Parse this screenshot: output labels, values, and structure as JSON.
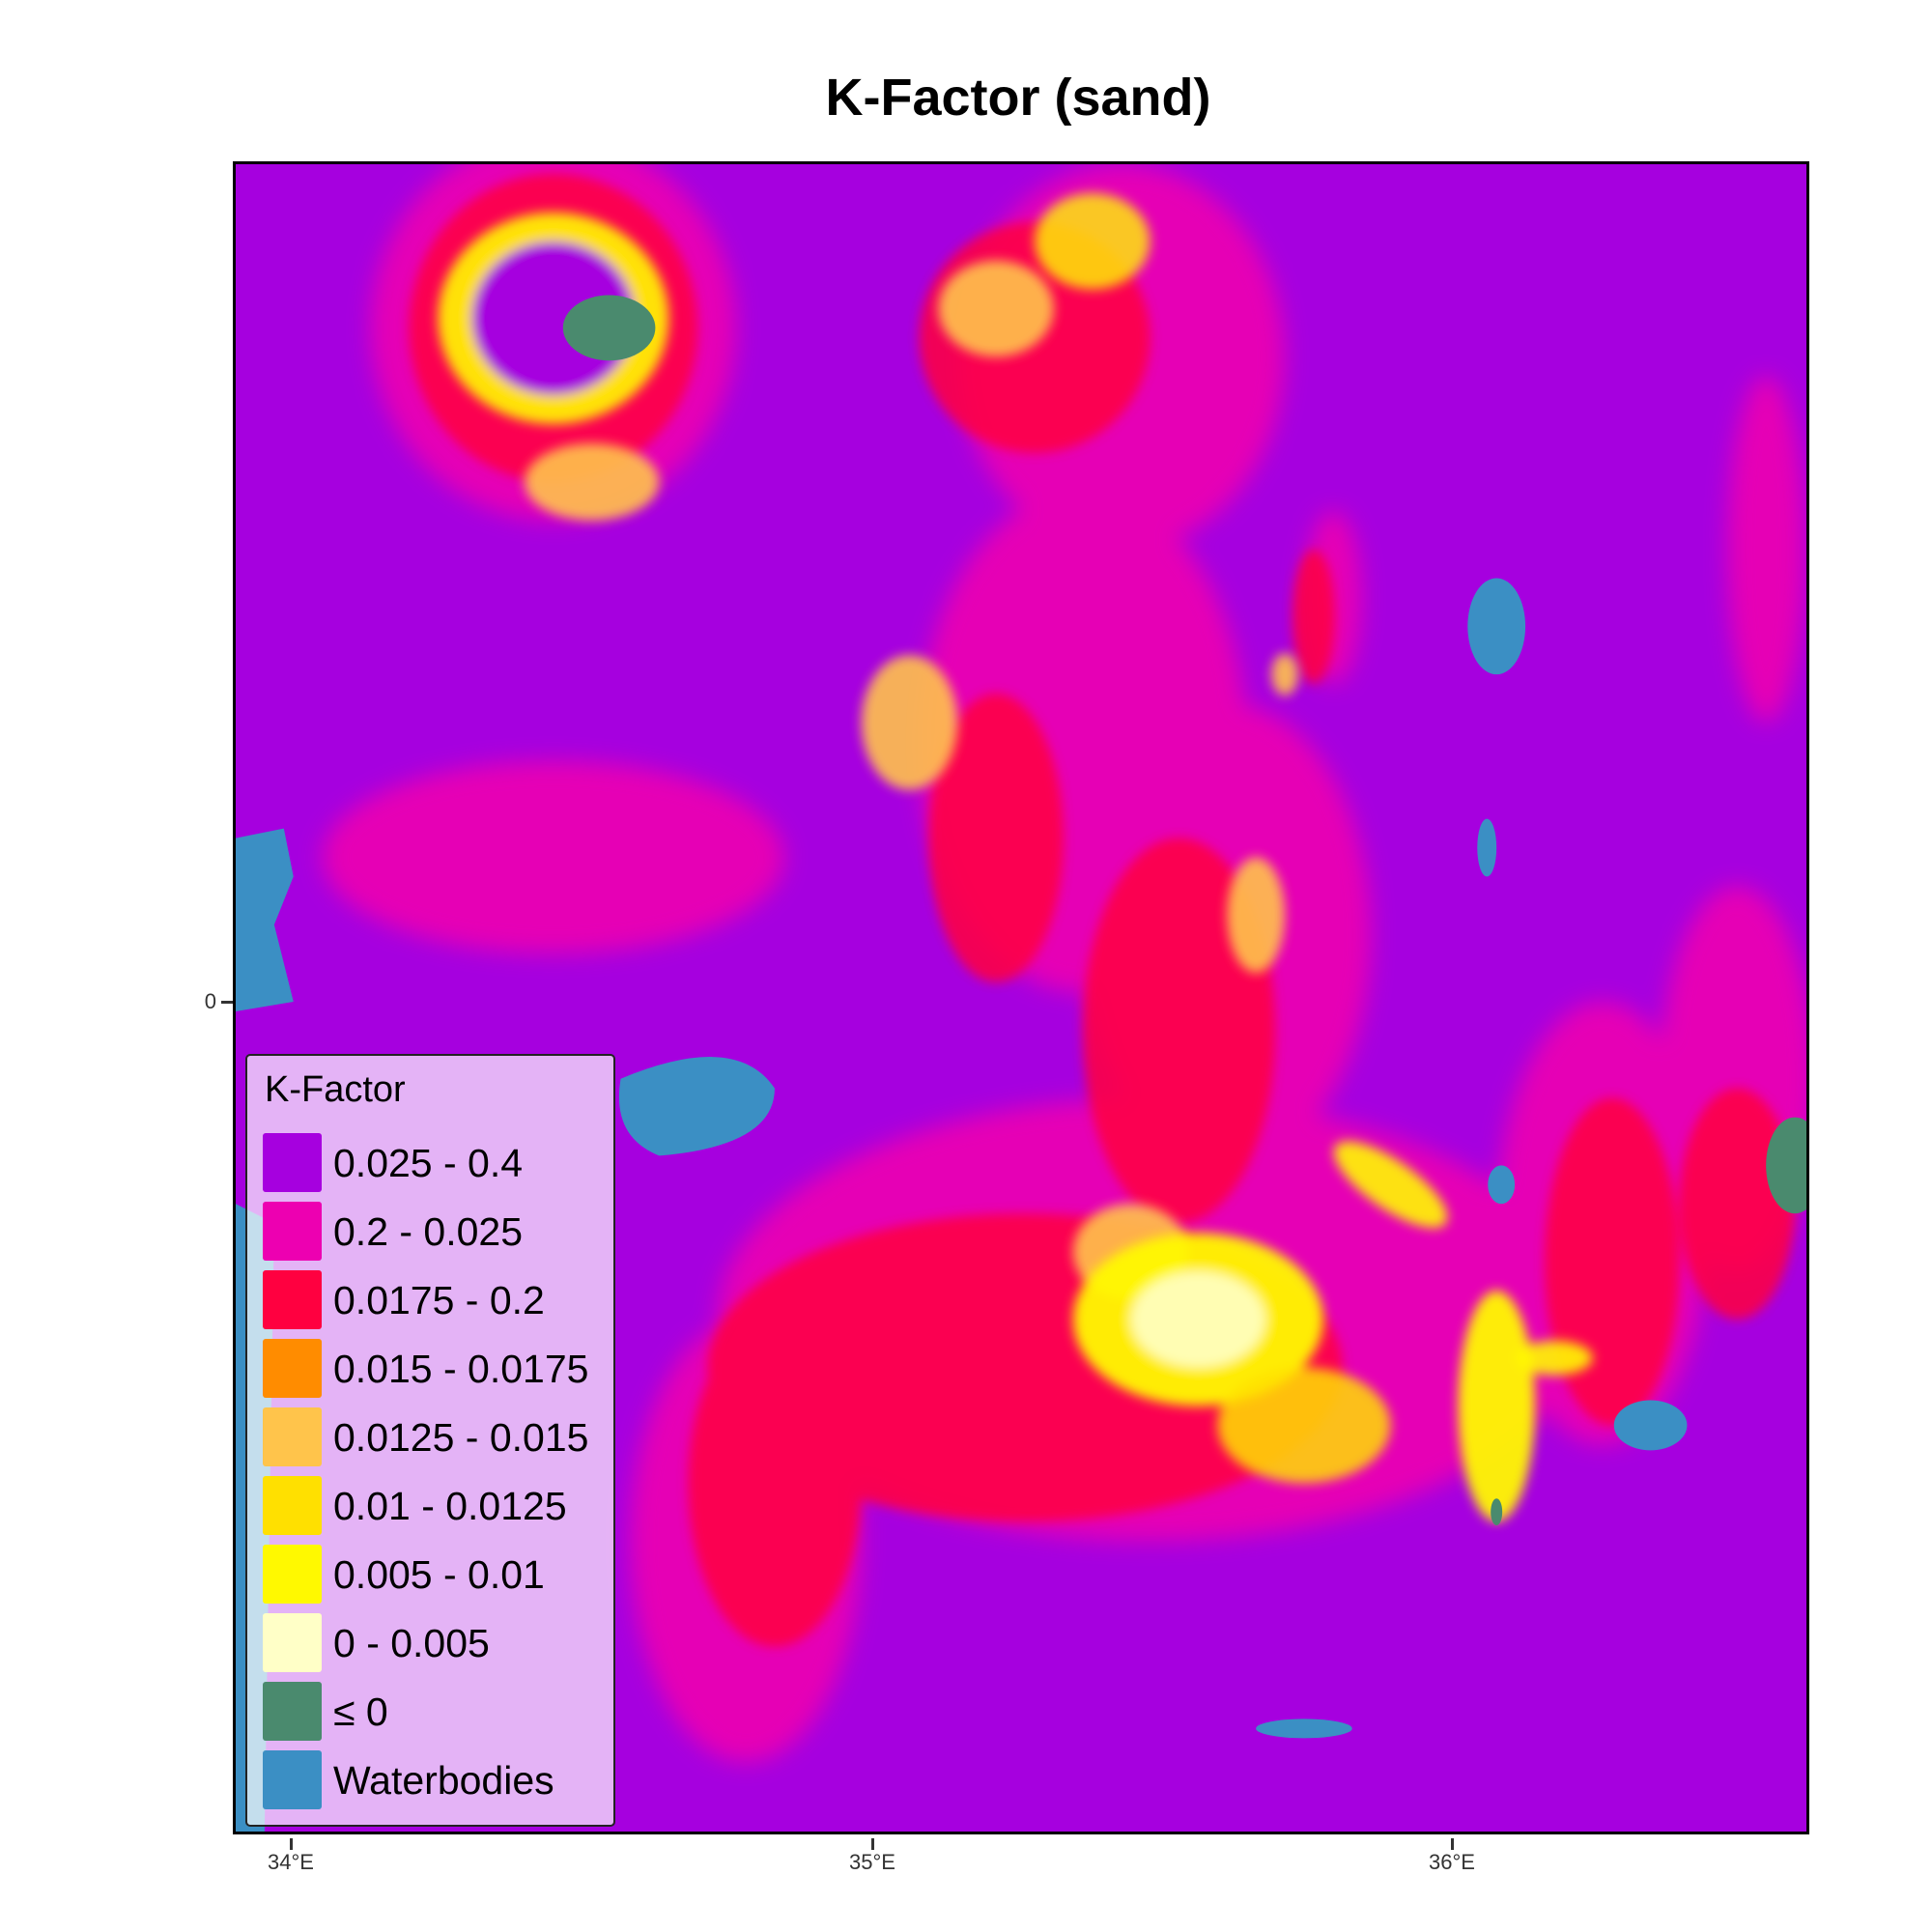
{
  "title": "K-Factor (sand)",
  "x_axis": {
    "ticks": [
      "34°E",
      "35°E",
      "36°E"
    ]
  },
  "y_axis": {
    "ticks": [
      "0"
    ]
  },
  "legend": {
    "title": "K-Factor",
    "items": [
      {
        "label": "0.025 - 0.4",
        "color": "#a600df"
      },
      {
        "label": "0.2 - 0.025",
        "color": "#ed00b1"
      },
      {
        "label": "0.0175 - 0.2",
        "color": "#ff0040"
      },
      {
        "label": "0.015 - 0.0175",
        "color": "#ff8c00"
      },
      {
        "label": "0.0125 - 0.015",
        "color": "#ffc44b"
      },
      {
        "label": "0.01 - 0.0125",
        "color": "#ffe000"
      },
      {
        "label": "0.005 - 0.01",
        "color": "#fff900"
      },
      {
        "label": "0 - 0.005",
        "color": "#ffffc7"
      },
      {
        "label": "≤ 0",
        "color": "#4a8a6e"
      },
      {
        "label": "Waterbodies",
        "color": "#3b8fc4"
      }
    ]
  }
}
